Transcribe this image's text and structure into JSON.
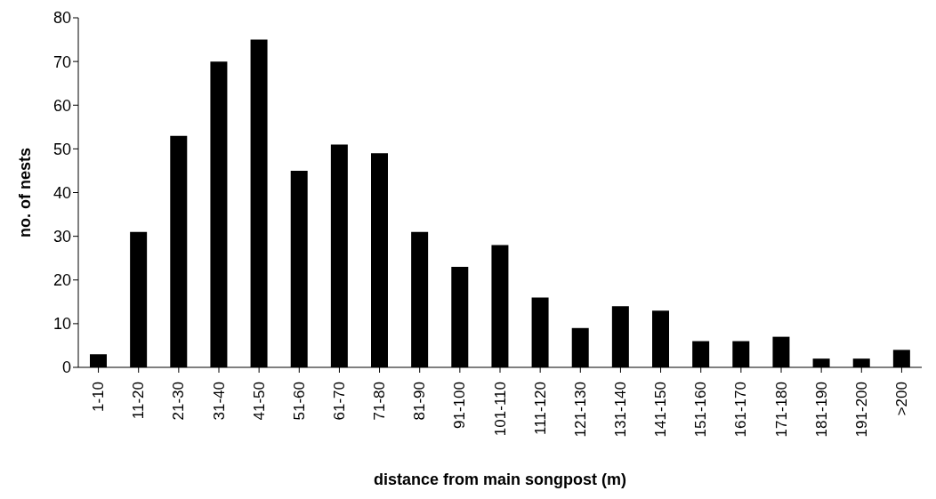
{
  "chart_data": {
    "type": "bar",
    "xlabel": "distance from main songpost (m)",
    "ylabel": "no. of nests",
    "categories": [
      "1-10",
      "11-20",
      "21-30",
      "31-40",
      "41-50",
      "51-60",
      "61-70",
      "71-80",
      "81-90",
      "91-100",
      "101-110",
      "111-120",
      "121-130",
      "131-140",
      "141-150",
      "151-160",
      "161-170",
      "171-180",
      "181-190",
      "191-200",
      ">200"
    ],
    "values": [
      3,
      31,
      53,
      70,
      75,
      45,
      51,
      49,
      31,
      23,
      28,
      16,
      9,
      14,
      13,
      6,
      6,
      7,
      2,
      2,
      4
    ],
    "color": "#000000",
    "ylim": [
      0,
      80
    ],
    "yticks": [
      0,
      10,
      20,
      30,
      40,
      50,
      60,
      70,
      80
    ],
    "grid": false,
    "legend": false
  }
}
